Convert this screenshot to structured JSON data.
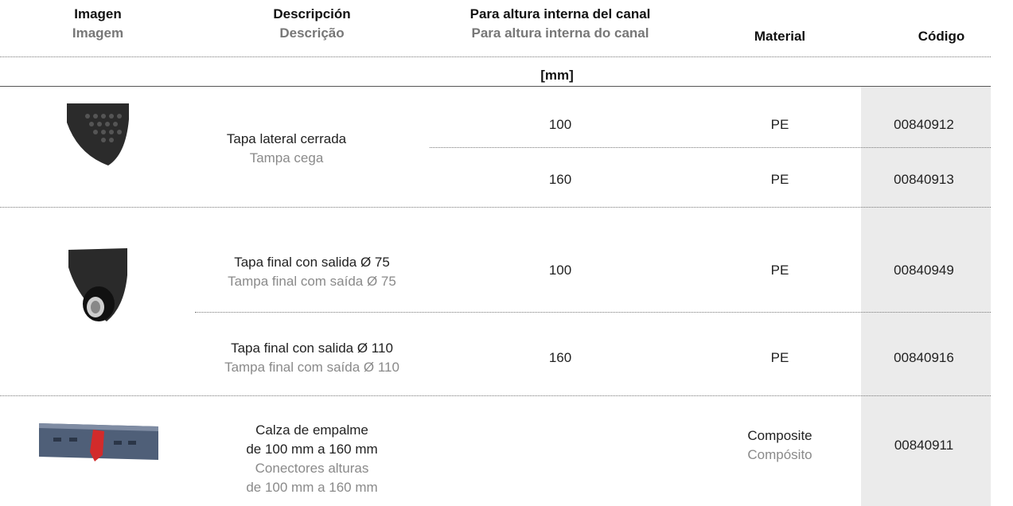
{
  "table": {
    "columns": [
      {
        "es": "Imagen",
        "pt": "Imagem"
      },
      {
        "es": "Descripción",
        "pt": "Descrição"
      },
      {
        "es": "Para altura interna del canal",
        "pt": "Para altura interna do canal",
        "unit": "[mm]"
      },
      {
        "es": "Material"
      },
      {
        "es": "Código"
      }
    ],
    "groups": [
      {
        "description": {
          "es": "Tapa lateral cerrada",
          "pt": "Tampa cega"
        },
        "rows": [
          {
            "height": 100,
            "material": "PE",
            "code": "00840912"
          },
          {
            "height": 160,
            "material": "PE",
            "code": "00840913"
          }
        ]
      },
      {
        "rows": [
          {
            "description": {
              "es": "Tapa final con salida Ø 75",
              "pt": "Tampa final com saída Ø 75"
            },
            "height": 100,
            "material": "PE",
            "code": "00840949"
          },
          {
            "description": {
              "es": "Tapa final con salida Ø 110",
              "pt": "Tampa final com saída Ø 110"
            },
            "height": 160,
            "material": "PE",
            "code": "00840916"
          }
        ]
      },
      {
        "description": {
          "es": [
            "Calza de empalme",
            "de 100 mm a 160 mm"
          ],
          "pt": [
            "Conectores alturas",
            "de 100 mm a 160 mm"
          ]
        },
        "rows": [
          {
            "material": {
              "es": "Composite",
              "pt": "Compósito"
            },
            "code": "00840911"
          }
        ]
      }
    ]
  }
}
